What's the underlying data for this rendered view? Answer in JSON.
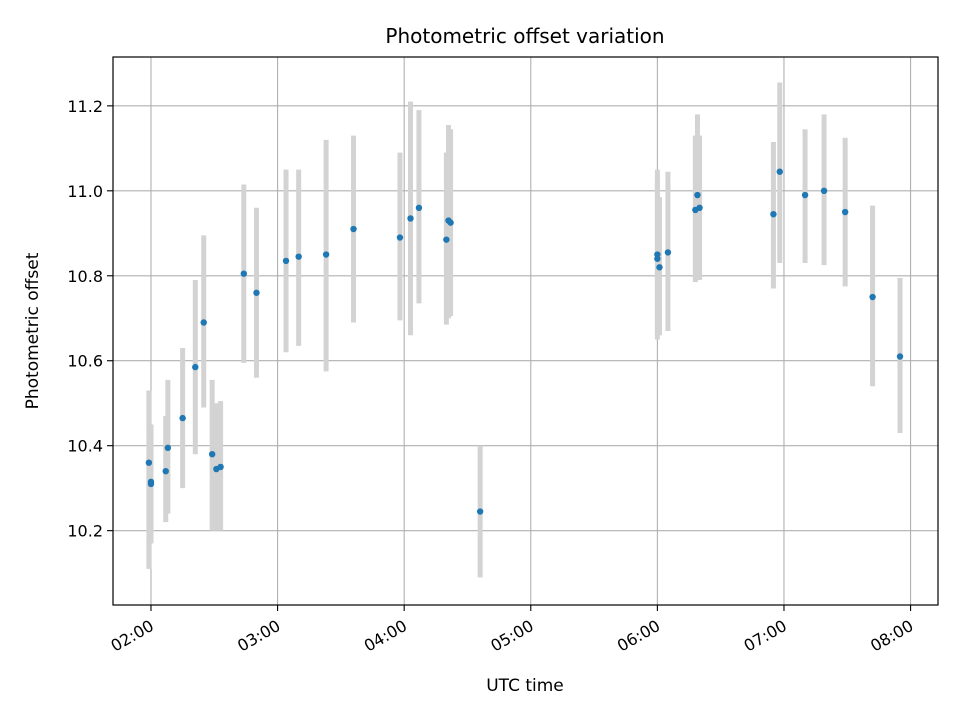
{
  "chart_data": {
    "type": "scatter",
    "title": "Photometric offset variation",
    "xlabel": "UTC time",
    "ylabel": "Photometric offset",
    "x_tick_labels": [
      "02:00",
      "03:00",
      "04:00",
      "05:00",
      "06:00",
      "07:00",
      "08:00"
    ],
    "y_tick_labels": [
      "10.2",
      "10.4",
      "10.6",
      "10.8",
      "11.0",
      "11.2"
    ],
    "xlim": [
      "01:42",
      "08:13"
    ],
    "ylim": [
      10.025,
      11.315
    ],
    "grid": true,
    "colors": {
      "point": "#1f77b4",
      "errorbar": "#d3d3d3",
      "grid": "#b0b0b0"
    },
    "points": [
      {
        "t": "01:59",
        "y": 10.36,
        "low": 10.11,
        "high": 10.53
      },
      {
        "t": "02:00",
        "y": 10.315,
        "low": 10.19,
        "high": 10.45
      },
      {
        "t": "02:00",
        "y": 10.31,
        "low": 10.17,
        "high": 10.45
      },
      {
        "t": "02:07",
        "y": 10.34,
        "low": 10.22,
        "high": 10.47
      },
      {
        "t": "02:08",
        "y": 10.395,
        "low": 10.24,
        "high": 10.555
      },
      {
        "t": "02:15",
        "y": 10.465,
        "low": 10.3,
        "high": 10.63
      },
      {
        "t": "02:21",
        "y": 10.585,
        "low": 10.38,
        "high": 10.79
      },
      {
        "t": "02:25",
        "y": 10.69,
        "low": 10.49,
        "high": 10.895
      },
      {
        "t": "02:29",
        "y": 10.38,
        "low": 10.2,
        "high": 10.555
      },
      {
        "t": "02:31",
        "y": 10.345,
        "low": 10.2,
        "high": 10.5
      },
      {
        "t": "02:33",
        "y": 10.35,
        "low": 10.2,
        "high": 10.505
      },
      {
        "t": "02:44",
        "y": 10.805,
        "low": 10.595,
        "high": 11.015
      },
      {
        "t": "02:50",
        "y": 10.76,
        "low": 10.56,
        "high": 10.96
      },
      {
        "t": "03:04",
        "y": 10.835,
        "low": 10.62,
        "high": 11.05
      },
      {
        "t": "03:10",
        "y": 10.845,
        "low": 10.635,
        "high": 11.05
      },
      {
        "t": "03:23",
        "y": 10.85,
        "low": 10.575,
        "high": 11.12
      },
      {
        "t": "03:36",
        "y": 10.91,
        "low": 10.69,
        "high": 11.13
      },
      {
        "t": "03:58",
        "y": 10.89,
        "low": 10.695,
        "high": 11.09
      },
      {
        "t": "04:03",
        "y": 10.935,
        "low": 10.66,
        "high": 11.21
      },
      {
        "t": "04:07",
        "y": 10.96,
        "low": 10.735,
        "high": 11.19
      },
      {
        "t": "04:20",
        "y": 10.885,
        "low": 10.685,
        "high": 11.09
      },
      {
        "t": "04:21",
        "y": 10.93,
        "low": 10.7,
        "high": 11.155
      },
      {
        "t": "04:22",
        "y": 10.925,
        "low": 10.705,
        "high": 11.145
      },
      {
        "t": "04:36",
        "y": 10.245,
        "low": 10.09,
        "high": 10.4
      },
      {
        "t": "06:00",
        "y": 10.85,
        "low": 10.65,
        "high": 11.05
      },
      {
        "t": "06:00",
        "y": 10.84,
        "low": 10.66,
        "high": 11.03
      },
      {
        "t": "06:01",
        "y": 10.82,
        "low": 10.66,
        "high": 10.985
      },
      {
        "t": "06:05",
        "y": 10.855,
        "low": 10.67,
        "high": 11.045
      },
      {
        "t": "06:18",
        "y": 10.955,
        "low": 10.785,
        "high": 11.13
      },
      {
        "t": "06:19",
        "y": 10.99,
        "low": 10.8,
        "high": 11.18
      },
      {
        "t": "06:20",
        "y": 10.96,
        "low": 10.79,
        "high": 11.13
      },
      {
        "t": "06:55",
        "y": 10.945,
        "low": 10.77,
        "high": 11.115
      },
      {
        "t": "06:58",
        "y": 11.045,
        "low": 10.83,
        "high": 11.255
      },
      {
        "t": "07:10",
        "y": 10.99,
        "low": 10.83,
        "high": 11.145
      },
      {
        "t": "07:19",
        "y": 11.0,
        "low": 10.825,
        "high": 11.18
      },
      {
        "t": "07:29",
        "y": 10.95,
        "low": 10.775,
        "high": 11.125
      },
      {
        "t": "07:42",
        "y": 10.75,
        "low": 10.54,
        "high": 10.965
      },
      {
        "t": "07:55",
        "y": 10.61,
        "low": 10.43,
        "high": 10.795
      }
    ]
  }
}
